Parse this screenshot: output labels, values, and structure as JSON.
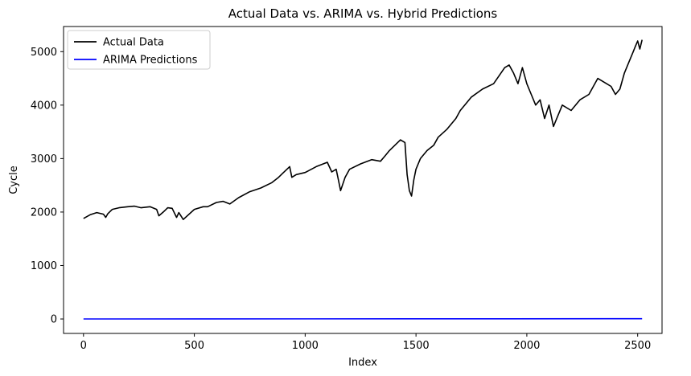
{
  "chart_data": {
    "type": "line",
    "title": "Actual Data vs. ARIMA vs. Hybrid Predictions",
    "xlabel": "Index",
    "ylabel": "Cycle",
    "xlim": [
      -90,
      2610
    ],
    "ylim": [
      -270,
      5470
    ],
    "xticks": [
      0,
      500,
      1000,
      1500,
      2000,
      2500
    ],
    "yticks": [
      0,
      1000,
      2000,
      3000,
      4000,
      5000
    ],
    "legend_position": "top-left",
    "grid": false,
    "series": [
      {
        "name": "Actual Data",
        "color": "#000000",
        "x": [
          0,
          30,
          60,
          90,
          100,
          110,
          130,
          160,
          200,
          230,
          260,
          300,
          330,
          340,
          360,
          380,
          400,
          420,
          430,
          450,
          500,
          540,
          560,
          600,
          630,
          660,
          700,
          750,
          800,
          850,
          880,
          900,
          930,
          940,
          960,
          1000,
          1050,
          1100,
          1120,
          1140,
          1150,
          1160,
          1180,
          1200,
          1250,
          1300,
          1340,
          1360,
          1380,
          1400,
          1430,
          1450,
          1460,
          1470,
          1480,
          1490,
          1500,
          1520,
          1550,
          1580,
          1600,
          1640,
          1680,
          1700,
          1750,
          1800,
          1850,
          1900,
          1920,
          1940,
          1960,
          1980,
          2000,
          2020,
          2040,
          2060,
          2080,
          2100,
          2120,
          2140,
          2160,
          2200,
          2240,
          2280,
          2320,
          2360,
          2380,
          2400,
          2420,
          2440,
          2460,
          2480,
          2490,
          2500,
          2510,
          2520
        ],
        "y": [
          1880,
          1950,
          1990,
          1960,
          1900,
          1970,
          2050,
          2080,
          2100,
          2110,
          2080,
          2100,
          2050,
          1930,
          2000,
          2080,
          2070,
          1900,
          1990,
          1860,
          2050,
          2100,
          2100,
          2180,
          2200,
          2150,
          2270,
          2380,
          2450,
          2550,
          2650,
          2730,
          2850,
          2650,
          2700,
          2740,
          2850,
          2930,
          2750,
          2800,
          2600,
          2400,
          2650,
          2800,
          2900,
          2980,
          2950,
          3050,
          3150,
          3230,
          3350,
          3300,
          2700,
          2400,
          2300,
          2600,
          2800,
          3000,
          3150,
          3250,
          3400,
          3550,
          3750,
          3900,
          4150,
          4300,
          4400,
          4700,
          4750,
          4600,
          4400,
          4700,
          4400,
          4200,
          4000,
          4100,
          3750,
          4000,
          3600,
          3800,
          4000,
          3900,
          4100,
          4200,
          4500,
          4400,
          4350,
          4200,
          4300,
          4600,
          4800,
          5000,
          5100,
          5200,
          5050,
          5220
        ]
      },
      {
        "name": "ARIMA Predictions",
        "color": "#0000ff",
        "x": [
          0,
          2520
        ],
        "y": [
          0,
          5
        ]
      }
    ]
  }
}
